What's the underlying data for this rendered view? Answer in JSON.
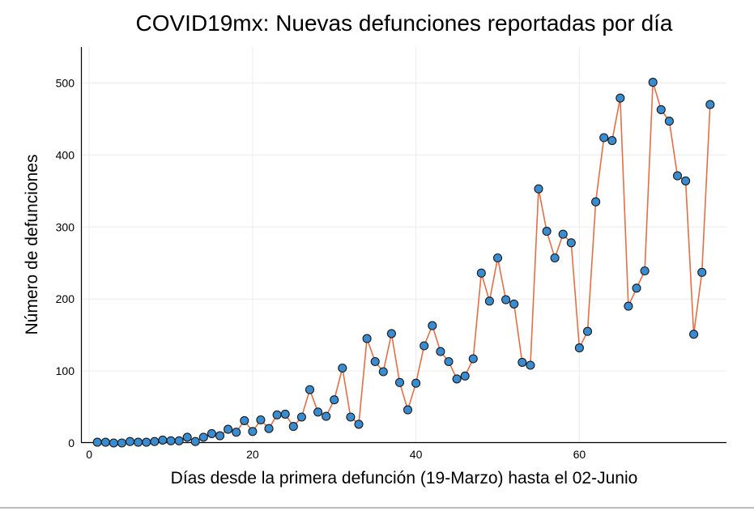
{
  "chart_data": {
    "type": "scatter",
    "title": "COVID19mx: Nuevas defunciones reportadas por día",
    "xlabel": "Días desde la primera defunción (19-Marzo) hasta el 02-Junio",
    "ylabel": "Número de defunciones",
    "xlim": [
      -1,
      78
    ],
    "ylim": [
      0,
      550
    ],
    "xticks": [
      0,
      20,
      40,
      60
    ],
    "yticks": [
      0,
      100,
      200,
      300,
      400,
      500
    ],
    "grid": true,
    "legend": "none",
    "series": [
      {
        "line_color": "#e26f46",
        "marker_color": "#3a8cd0",
        "x": [
          1,
          2,
          3,
          4,
          5,
          6,
          7,
          8,
          9,
          10,
          11,
          12,
          13,
          14,
          15,
          16,
          17,
          18,
          19,
          20,
          21,
          22,
          23,
          24,
          25,
          26,
          27,
          28,
          29,
          30,
          31,
          32,
          33,
          34,
          35,
          36,
          37,
          38,
          39,
          40,
          41,
          42,
          43,
          44,
          45,
          46,
          47,
          48,
          49,
          50,
          51,
          52,
          53,
          54,
          55,
          56,
          57,
          58,
          59,
          60,
          61,
          62,
          63,
          64,
          65,
          66,
          67,
          68,
          69,
          70,
          71,
          72,
          73,
          74,
          75,
          76
        ],
        "y": [
          1,
          1,
          0,
          0,
          2,
          1,
          1,
          2,
          4,
          3,
          3,
          8,
          2,
          8,
          13,
          10,
          19,
          15,
          31,
          16,
          32,
          20,
          39,
          40,
          23,
          36,
          74,
          43,
          37,
          60,
          104,
          36,
          26,
          145,
          113,
          99,
          152,
          84,
          46,
          83,
          135,
          163,
          127,
          113,
          89,
          93,
          117,
          236,
          197,
          257,
          199,
          193,
          112,
          108,
          353,
          294,
          257,
          290,
          278,
          132,
          155,
          335,
          424,
          420,
          479,
          190,
          215,
          239,
          501,
          463,
          447,
          371,
          364,
          151,
          237,
          470
        ]
      }
    ]
  }
}
